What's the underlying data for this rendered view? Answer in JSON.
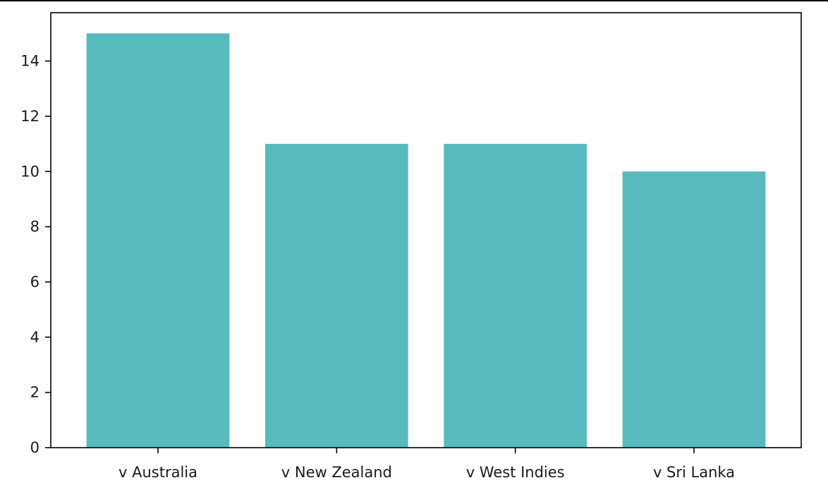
{
  "chart_data": {
    "type": "bar",
    "title": "",
    "xlabel": "",
    "ylabel": "",
    "categories": [
      "v Australia",
      "v New Zealand",
      "v West Indies",
      "v Sri Lanka"
    ],
    "values": [
      15,
      11,
      11,
      10
    ],
    "ylim": [
      0,
      15.75
    ],
    "yticks": [
      "0",
      "2",
      "4",
      "6",
      "8",
      "10",
      "12",
      "14"
    ],
    "bar_color": "#56babe",
    "grid": false,
    "legend": "none"
  }
}
